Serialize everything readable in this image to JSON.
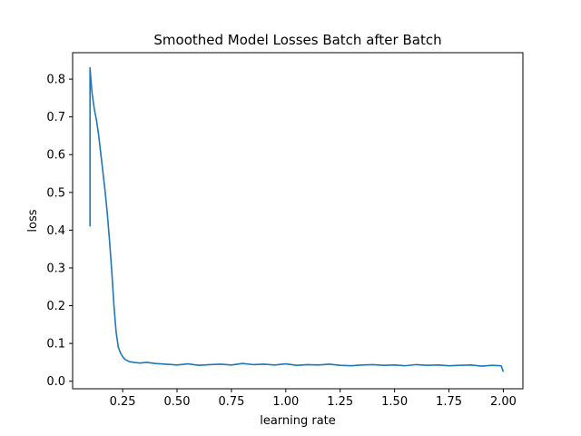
{
  "chart_data": {
    "type": "line",
    "title": "Smoothed Model Losses Batch after Batch",
    "xlabel": "learning rate",
    "ylabel": "loss",
    "xlim": [
      0.02,
      2.09
    ],
    "ylim": [
      -0.02,
      0.87
    ],
    "xticks": [
      0.25,
      0.5,
      0.75,
      1.0,
      1.25,
      1.5,
      1.75,
      2.0
    ],
    "xtick_labels": [
      "0.25",
      "0.50",
      "0.75",
      "1.00",
      "1.25",
      "1.50",
      "1.75",
      "2.00"
    ],
    "yticks": [
      0.0,
      0.1,
      0.2,
      0.3,
      0.4,
      0.5,
      0.6,
      0.7,
      0.8
    ],
    "ytick_labels": [
      "0.0",
      "0.1",
      "0.2",
      "0.3",
      "0.4",
      "0.5",
      "0.6",
      "0.7",
      "0.8"
    ],
    "grid": false,
    "legend": false,
    "color": "#1f77b4",
    "series": [
      {
        "x": [
          0.1,
          0.1,
          0.105,
          0.11,
          0.115,
          0.12,
          0.13,
          0.14,
          0.15,
          0.16,
          0.17,
          0.18,
          0.19,
          0.2,
          0.21,
          0.22,
          0.23,
          0.24,
          0.25,
          0.26,
          0.28,
          0.3,
          0.33,
          0.36,
          0.4,
          0.45,
          0.5,
          0.55,
          0.6,
          0.65,
          0.7,
          0.75,
          0.8,
          0.85,
          0.9,
          0.95,
          1.0,
          1.05,
          1.1,
          1.15,
          1.2,
          1.25,
          1.3,
          1.35,
          1.4,
          1.45,
          1.5,
          1.55,
          1.6,
          1.65,
          1.7,
          1.75,
          1.8,
          1.85,
          1.9,
          1.95,
          1.99,
          2.0
        ],
        "y": [
          0.41,
          0.83,
          0.79,
          0.76,
          0.74,
          0.72,
          0.69,
          0.65,
          0.6,
          0.55,
          0.5,
          0.44,
          0.37,
          0.29,
          0.2,
          0.13,
          0.09,
          0.075,
          0.065,
          0.058,
          0.052,
          0.05,
          0.048,
          0.05,
          0.047,
          0.045,
          0.043,
          0.046,
          0.042,
          0.044,
          0.045,
          0.043,
          0.047,
          0.044,
          0.045,
          0.043,
          0.046,
          0.042,
          0.044,
          0.043,
          0.045,
          0.042,
          0.041,
          0.043,
          0.044,
          0.042,
          0.043,
          0.041,
          0.044,
          0.042,
          0.043,
          0.041,
          0.042,
          0.043,
          0.04,
          0.042,
          0.041,
          0.025
        ]
      }
    ]
  }
}
